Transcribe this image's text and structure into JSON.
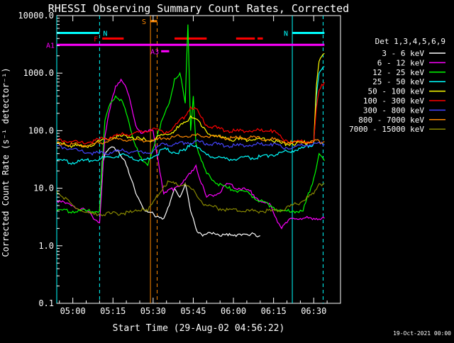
{
  "chart_data": {
    "type": "line",
    "title": "RHESSI Observing Summary Count Rates, Corrected",
    "xlabel": "Start Time (29-Aug-02 04:56:22)",
    "ylabel": "Corrected Count Rate (s⁻¹ detector⁻¹)",
    "footer": "19-Oct-2021 00:00",
    "x_range_min": [
      -6,
      100
    ],
    "ylim": [
      0.1,
      10000
    ],
    "y_scale": "log",
    "x_ticks": [
      {
        "m": 0,
        "label": "05:00"
      },
      {
        "m": 15,
        "label": "05:15"
      },
      {
        "m": 30,
        "label": "05:30"
      },
      {
        "m": 45,
        "label": "05:45"
      },
      {
        "m": 60,
        "label": "06:00"
      },
      {
        "m": 75,
        "label": "06:15"
      },
      {
        "m": 90,
        "label": "06:30"
      }
    ],
    "y_ticks": [
      {
        "v": 0.1,
        "label": "0.1"
      },
      {
        "v": 1,
        "label": "1.0"
      },
      {
        "v": 10,
        "label": "10.0"
      },
      {
        "v": 100,
        "label": "100.0"
      },
      {
        "v": 1000,
        "label": "1000.0"
      },
      {
        "v": 10000,
        "label": "10000.0"
      }
    ],
    "legend_title": "Det 1,3,4,5,6,9",
    "legend_position": "right",
    "series": [
      {
        "name": "3 - 6 keV",
        "color": "#ffffff",
        "x": [
          10,
          11,
          13,
          15,
          17,
          19,
          21,
          23,
          25,
          27,
          34,
          36,
          38,
          40,
          42,
          44,
          46,
          48,
          50,
          52,
          54,
          56,
          58,
          60,
          62,
          64,
          66,
          68,
          70
        ],
        "y": [
          4,
          30,
          45,
          52,
          46,
          32,
          18,
          10,
          6,
          4,
          3,
          5,
          10,
          7,
          12,
          4,
          2,
          1.6,
          1.6,
          1.6,
          1.6,
          1.6,
          1.5,
          1.5,
          1.6,
          1.6,
          1.5,
          1.6,
          1.5
        ]
      },
      {
        "name": "6 - 12 keV",
        "color": "#ff00ff",
        "x": [
          -6,
          0,
          5,
          10,
          12,
          14,
          16,
          18,
          20,
          22,
          24,
          26,
          28,
          30,
          34,
          38,
          42,
          44,
          46,
          48,
          50,
          54,
          58,
          62,
          66,
          70,
          74,
          76,
          78,
          80,
          82,
          86,
          90,
          94
        ],
        "y": [
          6,
          5,
          4,
          2.5,
          80,
          250,
          600,
          780,
          550,
          250,
          110,
          90,
          95,
          100,
          8,
          10,
          14,
          18,
          25,
          12,
          7,
          8,
          12,
          10,
          9,
          6,
          5,
          3,
          2,
          2.5,
          3,
          3,
          3,
          3
        ]
      },
      {
        "name": "12 - 25 keV",
        "color": "#00ff00",
        "x": [
          -6,
          0,
          5,
          10,
          12,
          14,
          16,
          18,
          20,
          22,
          24,
          26,
          28,
          32,
          36,
          38,
          40,
          42,
          43,
          44,
          45,
          46,
          48,
          50,
          54,
          58,
          62,
          66,
          70,
          74,
          78,
          80,
          82,
          86,
          90,
          92,
          94
        ],
        "y": [
          4,
          4,
          4,
          4,
          150,
          300,
          400,
          350,
          200,
          90,
          50,
          30,
          25,
          100,
          300,
          800,
          1000,
          300,
          7000,
          100,
          400,
          60,
          30,
          18,
          12,
          10,
          9,
          8,
          6,
          5,
          4,
          4,
          4,
          4,
          15,
          40,
          30
        ]
      },
      {
        "name": "25 - 50 keV",
        "color": "#00ffff",
        "x": [
          -6,
          0,
          4,
          10,
          14,
          18,
          22,
          26,
          30,
          34,
          38,
          42,
          44,
          46,
          48,
          50,
          54,
          58,
          62,
          66,
          70,
          74,
          78,
          80,
          82,
          86,
          90,
          91,
          92,
          94
        ],
        "y": [
          30,
          28,
          30,
          32,
          35,
          38,
          35,
          30,
          35,
          48,
          42,
          45,
          60,
          55,
          45,
          38,
          34,
          32,
          33,
          34,
          35,
          38,
          42,
          44,
          45,
          50,
          60,
          400,
          1000,
          1300
        ]
      },
      {
        "name": "50 - 100 keV",
        "color": "#ffff00",
        "x": [
          -6,
          0,
          4,
          10,
          14,
          18,
          22,
          26,
          30,
          34,
          38,
          42,
          44,
          46,
          48,
          50,
          54,
          58,
          62,
          66,
          70,
          74,
          78,
          82,
          86,
          90,
          91,
          92,
          94
        ],
        "y": [
          60,
          55,
          52,
          65,
          75,
          80,
          78,
          70,
          68,
          85,
          100,
          140,
          180,
          160,
          120,
          95,
          78,
          72,
          70,
          70,
          72,
          70,
          60,
          60,
          62,
          65,
          600,
          1600,
          2200
        ]
      },
      {
        "name": "100 - 300 keV",
        "color": "#ff0000",
        "x": [
          -6,
          0,
          4,
          10,
          14,
          18,
          22,
          26,
          30,
          34,
          38,
          42,
          44,
          46,
          48,
          50,
          54,
          58,
          62,
          66,
          70,
          74,
          78,
          82,
          86,
          90,
          91,
          92,
          94
        ],
        "y": [
          70,
          65,
          60,
          70,
          78,
          85,
          88,
          95,
          110,
          90,
          120,
          180,
          260,
          240,
          170,
          125,
          110,
          100,
          98,
          100,
          100,
          105,
          75,
          62,
          64,
          65,
          250,
          500,
          700
        ]
      },
      {
        "name": "300 - 800 keV",
        "color": "#4444ff",
        "x": [
          -6,
          0,
          4,
          10,
          14,
          18,
          22,
          26,
          30,
          34,
          38,
          42,
          46,
          50,
          54,
          58,
          62,
          66,
          70,
          74,
          78,
          82,
          86,
          90,
          94
        ],
        "y": [
          55,
          48,
          42,
          40,
          42,
          45,
          43,
          42,
          44,
          60,
          58,
          62,
          65,
          60,
          58,
          55,
          55,
          56,
          58,
          60,
          52,
          50,
          55,
          60,
          58
        ]
      },
      {
        "name": "800 - 7000 keV",
        "color": "#ff8800",
        "x": [
          -6,
          0,
          4,
          10,
          14,
          18,
          22,
          26,
          30,
          34,
          38,
          42,
          46,
          50,
          54,
          58,
          62,
          66,
          70,
          74,
          78,
          82,
          86,
          90,
          94
        ],
        "y": [
          62,
          58,
          55,
          60,
          68,
          72,
          70,
          68,
          66,
          75,
          78,
          80,
          82,
          80,
          78,
          75,
          74,
          75,
          74,
          72,
          66,
          62,
          63,
          65,
          65
        ]
      },
      {
        "name": "7000 - 15000 keV",
        "color": "#888800",
        "x": [
          -6,
          0,
          5,
          8,
          10,
          14,
          18,
          22,
          24,
          26,
          28,
          34,
          36,
          38,
          40,
          42,
          44,
          46,
          48,
          50,
          54,
          58,
          62,
          66,
          70,
          74,
          78,
          82,
          86,
          90,
          92,
          94
        ],
        "y": [
          9,
          5,
          3.8,
          3.5,
          3.6,
          3.6,
          3.7,
          3.8,
          4,
          4.5,
          4,
          11,
          13,
          12,
          11,
          12,
          10,
          8,
          6,
          5,
          4.5,
          4.2,
          4,
          4,
          4,
          4,
          4.2,
          5,
          6,
          8,
          12,
          12
        ]
      }
    ],
    "flag_bars": [
      {
        "label": "N",
        "color": "#00ffff",
        "x0": -6,
        "x1": 10,
        "level": 5000,
        "label_at_end": true
      },
      {
        "label": "N",
        "color": "#00ffff",
        "x0": 82,
        "x1": 94,
        "level": 5000,
        "label_at_end": false
      },
      {
        "label": "F",
        "color": "#ff0000",
        "x0": 11,
        "x1": 19,
        "level": 4000,
        "label_at_end": false
      },
      {
        "label": "",
        "color": "#ff0000",
        "x0": 38,
        "x1": 50,
        "level": 4000,
        "label_at_end": false
      },
      {
        "label": "",
        "color": "#ff0000",
        "x0": 61,
        "x1": 68,
        "level": 4000,
        "label_at_end": false
      },
      {
        "label": "",
        "color": "#ff0000",
        "x0": 69,
        "x1": 71,
        "level": 4000,
        "label_at_end": false
      },
      {
        "label": "S",
        "color": "#ff8800",
        "x0": 29,
        "x1": 31.5,
        "level": 8000,
        "label_at_end": false
      },
      {
        "label": "A1",
        "color": "#ff00ff",
        "x0": -6,
        "x1": 94,
        "level": 3100,
        "label_at_end": false
      },
      {
        "label": "A3",
        "color": "#ff00ff",
        "x0": 33,
        "x1": 36,
        "level": 2400,
        "label_at_end": false
      }
    ],
    "vlines": [
      {
        "x": 10,
        "color": "#00ffff",
        "dashed": true
      },
      {
        "x": 82,
        "color": "#00ffff",
        "dashed": false
      },
      {
        "x": 29,
        "color": "#ff8800",
        "dashed": false
      },
      {
        "x": 31.5,
        "color": "#ff8800",
        "dashed": true
      },
      {
        "x": 93.5,
        "color": "#00ffff",
        "dashed": true
      },
      {
        "x": -6,
        "color": "#00ffff",
        "dashed": false
      }
    ]
  }
}
